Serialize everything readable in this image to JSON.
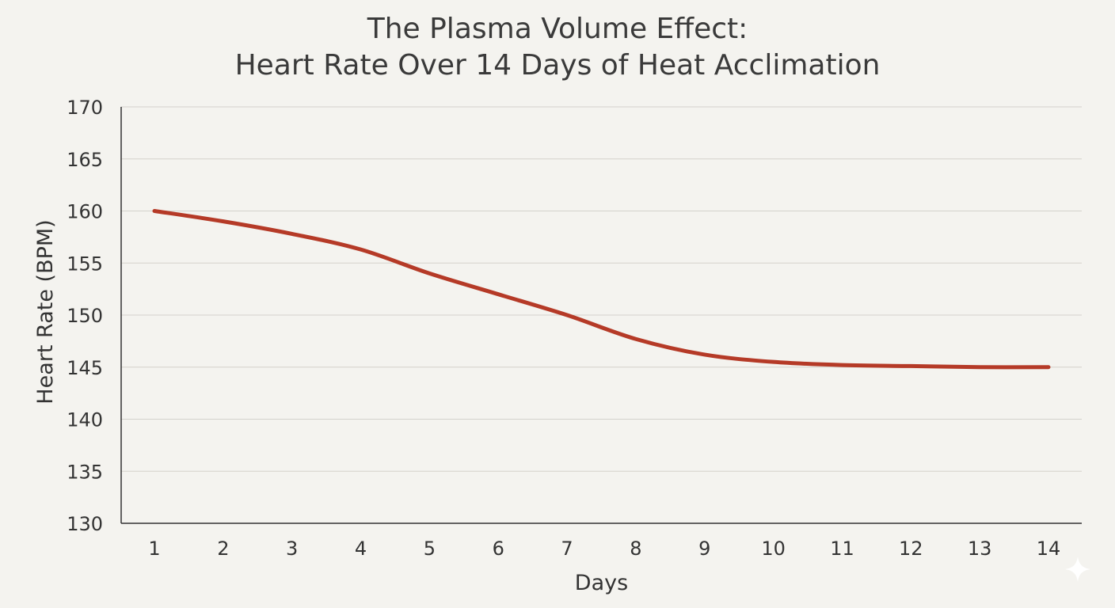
{
  "chart_data": {
    "type": "line",
    "title_lines": [
      "The Plasma Volume Effect:",
      "Heart Rate Over 14 Days of Heat Acclimation"
    ],
    "xlabel": "Days",
    "ylabel": "Heart Rate (BPM)",
    "x": [
      1,
      2,
      3,
      4,
      5,
      6,
      7,
      8,
      9,
      10,
      11,
      12,
      13,
      14
    ],
    "ylim": [
      130,
      170
    ],
    "yticks": [
      130,
      135,
      140,
      145,
      150,
      155,
      160,
      165,
      170
    ],
    "grid": true,
    "series": [
      {
        "values": [
          160,
          159,
          157.8,
          156.3,
          154,
          152,
          150,
          147.7,
          146.2,
          145.5,
          145.2,
          145.1,
          145,
          145
        ],
        "color": "#b53a27"
      }
    ]
  },
  "decor": {
    "corner_icon": "sparkle-icon",
    "corner_icon_color": "#ffffff"
  }
}
